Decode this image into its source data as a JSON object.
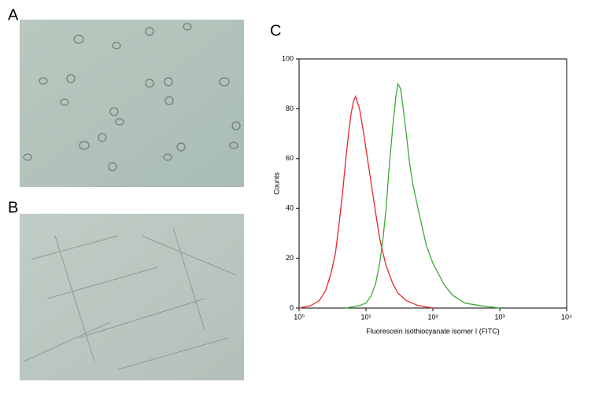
{
  "panel_labels": [
    "A",
    "B",
    "C"
  ],
  "chart_data": {
    "type": "line",
    "xlabel": "Fluorescein isothiocyanate isomer I (FITC)",
    "ylabel": "Counts",
    "xscale": "log",
    "xlim": [
      1,
      10000
    ],
    "xticks": [
      {
        "value": 1,
        "label": "10⁰"
      },
      {
        "value": 10,
        "label": "10¹"
      },
      {
        "value": 100,
        "label": "10²"
      },
      {
        "value": 1000,
        "label": "10³"
      },
      {
        "value": 10000,
        "label": "10⁴"
      }
    ],
    "ylim": [
      0,
      100
    ],
    "yticks": [
      0,
      20,
      40,
      60,
      80,
      100
    ],
    "series": [
      {
        "color": "#e8262b",
        "x": [
          1,
          1.5,
          2,
          2.5,
          3,
          3.5,
          4,
          4.5,
          5,
          5.5,
          6,
          6.5,
          7,
          8,
          9,
          10,
          12,
          14,
          16,
          18,
          20,
          25,
          30,
          40,
          60,
          100
        ],
        "values": [
          0,
          1,
          3,
          7,
          14,
          22,
          35,
          47,
          60,
          70,
          78,
          83,
          85,
          80,
          72,
          64,
          50,
          38,
          28,
          22,
          17,
          10,
          6,
          3,
          1,
          0
        ]
      },
      {
        "color": "#3aa935",
        "x": [
          5,
          8,
          10,
          12,
          14,
          16,
          18,
          20,
          22,
          25,
          28,
          30,
          33,
          36,
          40,
          45,
          50,
          60,
          70,
          80,
          100,
          150,
          200,
          300,
          500,
          1000
        ],
        "values": [
          0,
          1,
          2,
          5,
          10,
          18,
          28,
          40,
          55,
          72,
          85,
          90,
          88,
          80,
          70,
          58,
          50,
          40,
          32,
          25,
          18,
          9,
          5,
          2,
          1,
          0
        ]
      }
    ]
  }
}
